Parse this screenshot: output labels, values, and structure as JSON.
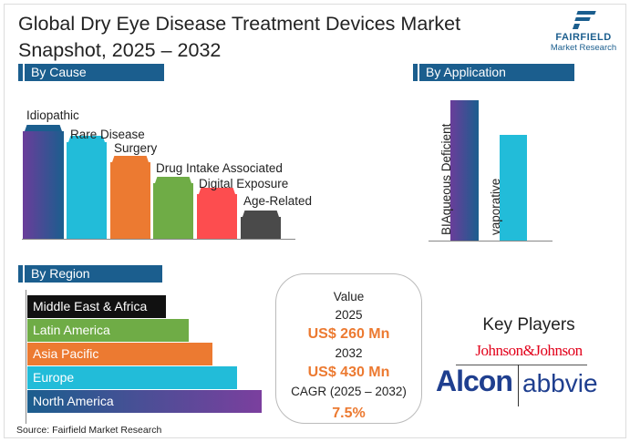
{
  "title": {
    "line1": "Global Dry Eye Disease Treatment Devices Market",
    "line2": "Snapshot, 2025 – 2032"
  },
  "logo": {
    "brand": "FAIRFIELD",
    "sub": "Market Research"
  },
  "cause": {
    "header": "By Cause",
    "items": [
      {
        "label": "Idiopathic",
        "color": "#1b5e8e"
      },
      {
        "label": "Rare Disease",
        "color": "#22bcd9"
      },
      {
        "label": "Surgery",
        "color": "#ec7a31"
      },
      {
        "label": "Drug Intake Associated",
        "color": "#6fac46"
      },
      {
        "label": "Digital Exposure",
        "color": "#fd4d4f"
      },
      {
        "label": "Age-Related",
        "color": "#4a4a4a"
      }
    ]
  },
  "application": {
    "header": "By Application",
    "items": [
      {
        "label": "BIAqueous Deficient"
      },
      {
        "label": "vaporative"
      }
    ]
  },
  "region": {
    "header": "By Region",
    "items": [
      {
        "label": "Middle East & Africa",
        "color": "#111111"
      },
      {
        "label": "Latin America",
        "color": "#6fac46"
      },
      {
        "label": "Asia Pacific",
        "color": "#ec7a31"
      },
      {
        "label": "Europe",
        "color": "#22bcd9"
      },
      {
        "label": "North America",
        "color": "#1b5e8e"
      }
    ]
  },
  "value": {
    "label": "Value",
    "y1": "2025",
    "v1": "US$ 260 Mn",
    "y2": "2032",
    "v2": "US$ 430 Mn",
    "cagr_label": "CAGR (2025 – 2032)",
    "cagr": "7.5%"
  },
  "players": {
    "header": "Key Players",
    "names": [
      "Johnson&Johnson",
      "Alcon",
      "abbvie"
    ]
  },
  "source": "Source: Fairfield Market Research"
}
